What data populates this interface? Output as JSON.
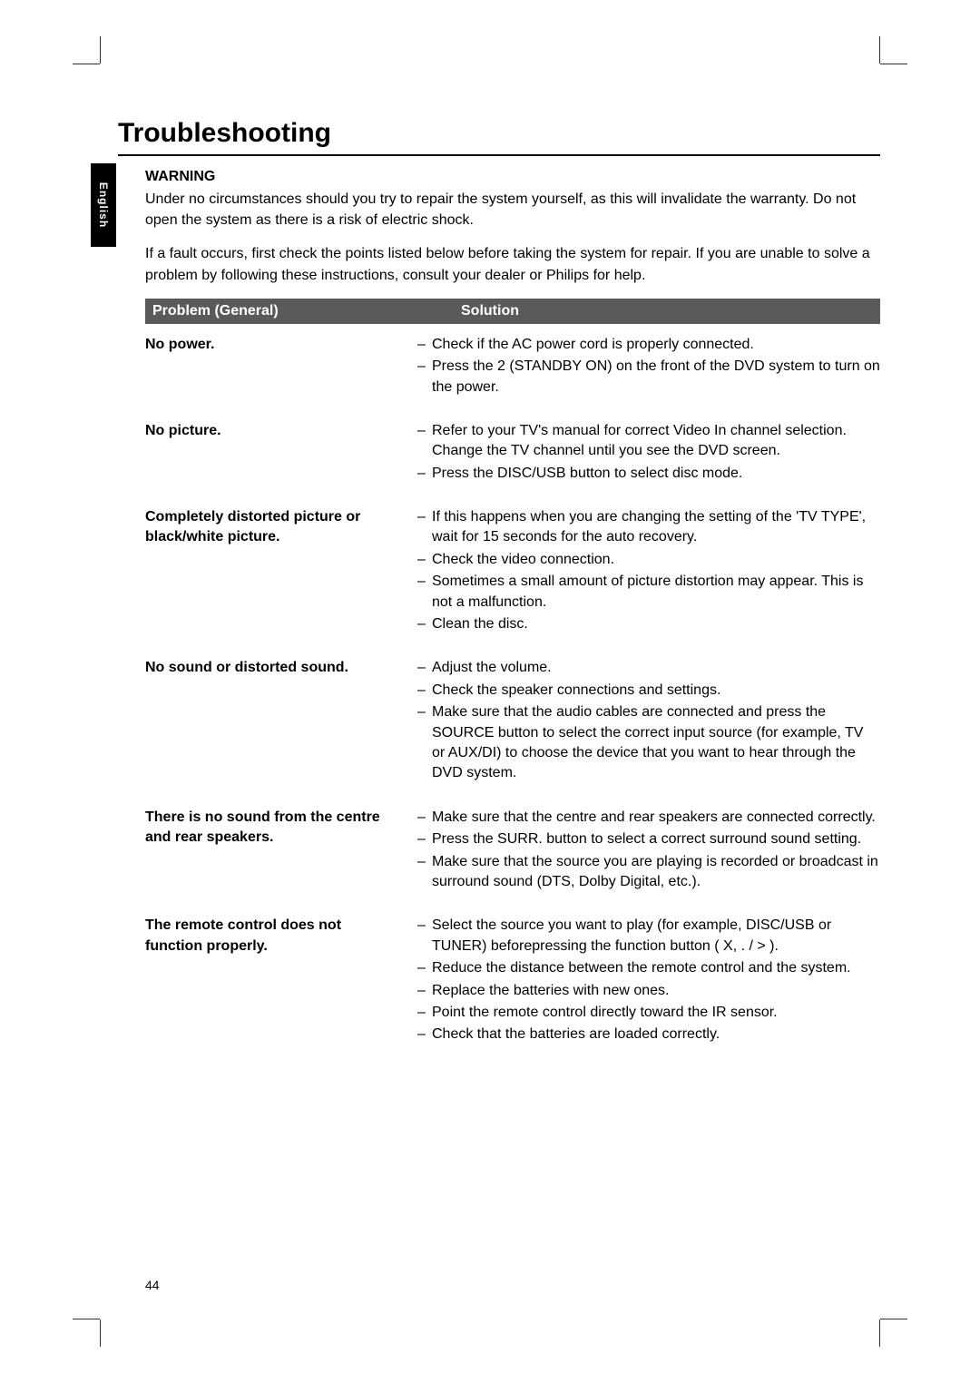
{
  "page": {
    "title": "Troubleshooting",
    "side_tab": "English",
    "page_number": "44"
  },
  "warning": {
    "heading": "WARNING",
    "p1": "Under no circumstances should you try to repair the system yourself, as this will invalidate the warranty. Do not open the system as there is a risk of electric shock.",
    "p2": "If a fault occurs, first check the points listed below before taking the system for repair. If you are unable to solve a problem by following these instructions, consult your dealer or Philips for help."
  },
  "table": {
    "header_problem": "Problem (General)",
    "header_solution": "Solution",
    "rows": [
      {
        "problem": "No power.",
        "solutions": [
          "Check if the AC power cord is properly connected.",
          "Press the 2  (STANDBY ON) on the front of the DVD system to turn on the power."
        ]
      },
      {
        "problem": "No picture.",
        "solutions": [
          "Refer to your TV's manual for correct Video In channel selection. Change the TV channel until you see the DVD screen.",
          "Press the DISC/USB button to select disc mode."
        ]
      },
      {
        "problem": "Completely distorted picture or black/white picture.",
        "solutions": [
          "If this happens when you are changing the setting of the 'TV TYPE', wait for 15 seconds for the auto recovery.",
          "Check the video connection.",
          "Sometimes a small amount of picture distortion may appear. This is not a malfunction.",
          "Clean the disc."
        ]
      },
      {
        "problem": "No sound or distorted sound.",
        "solutions": [
          "Adjust the volume.",
          "Check the speaker connections and settings.",
          "Make sure that the audio cables are connected and press the SOURCE button to select the correct input source (for example, TV or AUX/DI) to choose the device that you want to hear through the DVD system."
        ]
      },
      {
        "problem": "There is no sound from the centre and rear speakers.",
        "solutions": [
          "Make sure that the centre and rear speakers are connected correctly.",
          "Press the SURR. button to select a correct surround sound setting.",
          "Make sure that the source you are playing is recorded or broadcast in surround sound (DTS, Dolby Digital, etc.)."
        ]
      },
      {
        "problem": "The remote control does not function properly.",
        "solutions": [
          "Select the source you want to play (for example, DISC/USB or TUNER) beforepressing the function button (  X, .       / >     ).",
          "Reduce the distance between the remote control and the system.",
          "Replace the batteries with new ones.",
          "Point the remote control directly toward the IR sensor.",
          "Check that the batteries are loaded correctly."
        ]
      }
    ]
  }
}
